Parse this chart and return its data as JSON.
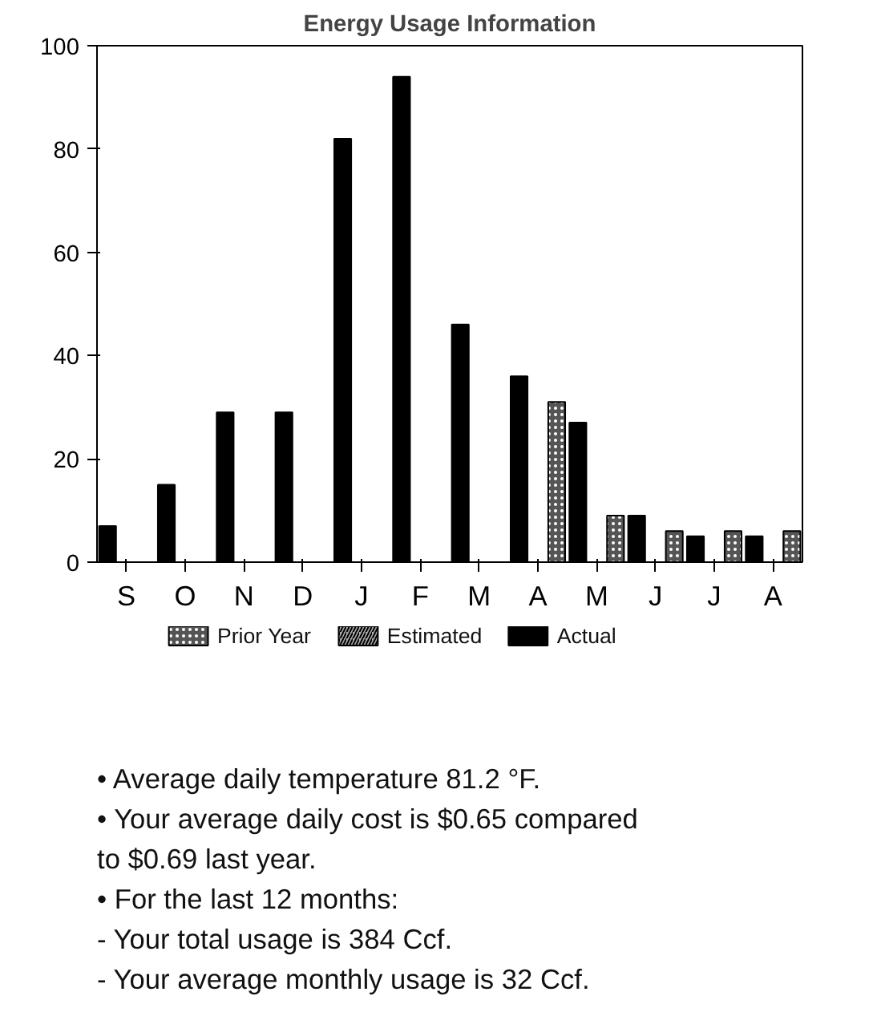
{
  "chart_data": {
    "type": "bar",
    "title": "Energy Usage Information",
    "categories": [
      "S",
      "O",
      "N",
      "D",
      "J",
      "F",
      "M",
      "A",
      "M",
      "J",
      "J",
      "A"
    ],
    "series": [
      {
        "name": "Prior Year",
        "color": "#555555",
        "values": [
          null,
          null,
          null,
          null,
          null,
          null,
          null,
          31,
          9,
          6,
          6,
          6
        ]
      },
      {
        "name": "Estimated",
        "color": "#aaaaaa",
        "values": [
          null,
          null,
          null,
          null,
          null,
          null,
          null,
          null,
          null,
          null,
          null,
          null
        ]
      },
      {
        "name": "Actual",
        "color": "#000000",
        "values": [
          7,
          15,
          29,
          29,
          82,
          94,
          46,
          36,
          27,
          9,
          5,
          5
        ]
      }
    ],
    "ylim": [
      0,
      100
    ],
    "yticks": [
      0,
      20,
      40,
      60,
      80,
      100
    ],
    "grid": false,
    "legend": "bottom",
    "annotations": [
      "• Average daily temperature 81.2 °F.",
      "• Your average daily cost is $0.65 compared to $0.69 last year.",
      "• For the last 12 months:",
      "- Your total usage is 384 Ccf.",
      "- Your average monthly usage is 32 Ccf."
    ]
  }
}
